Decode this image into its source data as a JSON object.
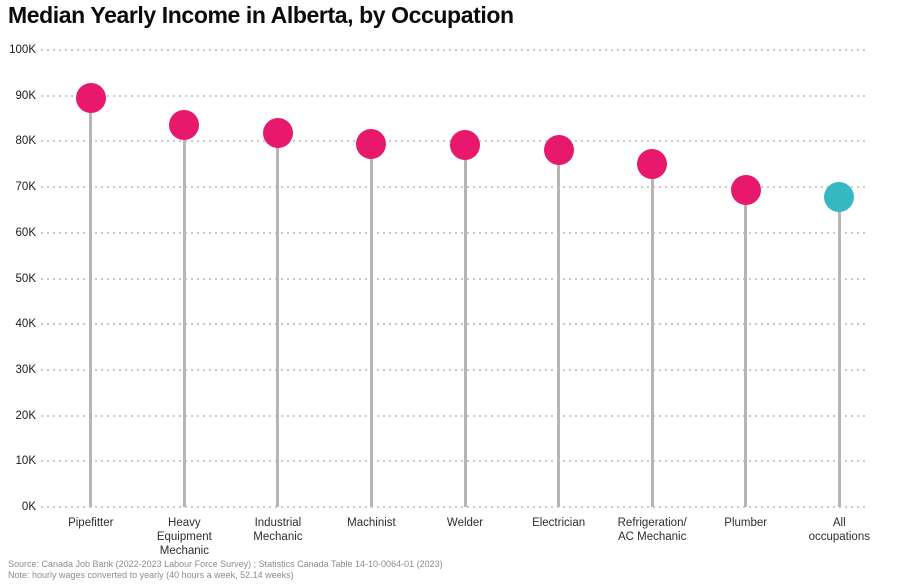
{
  "header": {
    "title": "Median Yearly Income in Alberta, by Occupation"
  },
  "footer": {
    "source": "Source: Canada Job Bank (2022-2023 Labour Force Survey) ; Statistics Canada Table 14-10-0064-01 (2023)",
    "note": "Note: hourly wages converted to yearly (40 hours a week, 52.14 weeks)"
  },
  "colors": {
    "occupation_dot": "#e8186c",
    "highlight_dot": "#35b8c1",
    "stem": "#b9b4b0",
    "gridline": "#c9c9c9",
    "title_text": "#0b0b0b",
    "footer_text": "#8d8d8d"
  },
  "chart_data": {
    "type": "scatter",
    "variant": "lollipop",
    "title": "Median Yearly Income in Alberta, by Occupation",
    "xlabel": "",
    "ylabel": "",
    "legend": "none",
    "grid": "dotted horizontal",
    "ylim": [
      0,
      100000
    ],
    "categories": [
      "Pipefitter",
      "Heavy Equipment Mechanic",
      "Industrial Mechanic",
      "Machinist",
      "Welder",
      "Electrician",
      "Refrigeration/ AC Mechanic",
      "Plumber",
      "All occupations"
    ],
    "category_label_lines": [
      [
        "Pipefitter"
      ],
      [
        "Heavy",
        "Equipment",
        "Mechanic"
      ],
      [
        "Industrial",
        "Mechanic"
      ],
      [
        "Machinist"
      ],
      [
        "Welder"
      ],
      [
        "Electrician"
      ],
      [
        "Refrigeration/",
        "AC Mechanic"
      ],
      [
        "Plumber"
      ],
      [
        "All",
        "occupations"
      ]
    ],
    "values": [
      89600,
      83600,
      81800,
      79400,
      79300,
      78200,
      75100,
      69400,
      67800
    ],
    "values_unit": "CAD per year (estimated from chart)",
    "point_colors": [
      "#e8186c",
      "#e8186c",
      "#e8186c",
      "#e8186c",
      "#e8186c",
      "#e8186c",
      "#e8186c",
      "#e8186c",
      "#35b8c1"
    ],
    "highlight_index": 8,
    "yticks": [
      {
        "label": "0K",
        "value": 0
      },
      {
        "label": "10K",
        "value": 10000
      },
      {
        "label": "20K",
        "value": 20000
      },
      {
        "label": "30K",
        "value": 30000
      },
      {
        "label": "40K",
        "value": 40000
      },
      {
        "label": "50K",
        "value": 50000
      },
      {
        "label": "60K",
        "value": 60000
      },
      {
        "label": "70K",
        "value": 70000
      },
      {
        "label": "80K",
        "value": 80000
      },
      {
        "label": "90K",
        "value": 90000
      },
      {
        "label": "100K",
        "value": 100000
      }
    ]
  }
}
